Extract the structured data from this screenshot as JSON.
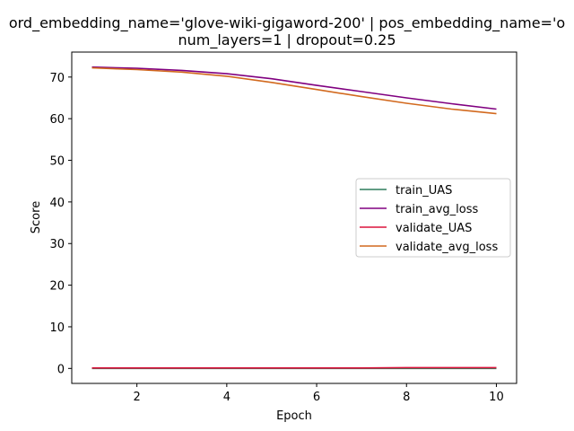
{
  "chart_data": {
    "type": "line",
    "title_line1": "ord_embedding_name='glove-wiki-gigaword-200' | pos_embedding_name='o",
    "title_line2": "num_layers=1 | dropout=0.25",
    "xlabel": "Epoch",
    "ylabel": "Score",
    "xlim": [
      0.55,
      10.45
    ],
    "ylim": [
      -3.6,
      76.0
    ],
    "xticks": [
      2,
      4,
      6,
      8,
      10
    ],
    "yticks": [
      0,
      10,
      20,
      30,
      40,
      50,
      60,
      70
    ],
    "grid": false,
    "legend_position": "center-right",
    "x": [
      1,
      2,
      3,
      4,
      5,
      6,
      7,
      8,
      9,
      10
    ],
    "series": [
      {
        "name": "train_UAS",
        "color": "#2e7d5b",
        "values": [
          0.0,
          0.0,
          0.0,
          0.0,
          0.0,
          0.0,
          0.0,
          0.0,
          0.0,
          0.0
        ]
      },
      {
        "name": "train_avg_loss",
        "color": "#800080",
        "values": [
          72.4,
          72.1,
          71.6,
          70.8,
          69.6,
          68.0,
          66.5,
          65.0,
          63.6,
          62.3
        ]
      },
      {
        "name": "validate_UAS",
        "color": "#dc143c",
        "values": [
          0.1,
          0.1,
          0.1,
          0.1,
          0.1,
          0.1,
          0.1,
          0.2,
          0.2,
          0.2
        ]
      },
      {
        "name": "validate_avg_loss",
        "color": "#d2691e",
        "values": [
          72.2,
          71.8,
          71.2,
          70.2,
          68.7,
          67.0,
          65.3,
          63.7,
          62.3,
          61.2
        ]
      }
    ]
  }
}
